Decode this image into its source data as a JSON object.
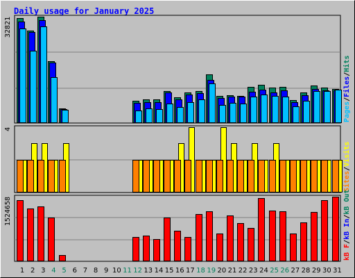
{
  "title": "Daily usage for January 2025",
  "colors": {
    "background": "#C0C0C0",
    "title": "#0000FF",
    "hits": "#00805C",
    "files": "#0000FF",
    "pages": "#00C0FF",
    "visits": "#FFFF00",
    "sites": "#FF8000",
    "kbin": "#0000FF",
    "kbout": "#00805C",
    "kbf": "#FF0000",
    "weekday_label": "#000000",
    "weekend_label": "#00805C"
  },
  "chart_data": [
    {
      "type": "bar",
      "title": "Daily usage for January 2025",
      "ymax_label": "32821",
      "ylim": [
        0,
        32821
      ],
      "legend": [
        {
          "text": "Pages",
          "color": "#00C0FF"
        },
        {
          "text": "/",
          "color": "#000000"
        },
        {
          "text": "Files",
          "color": "#0000FF"
        },
        {
          "text": "/",
          "color": "#000000"
        },
        {
          "text": "Hits",
          "color": "#00805C"
        }
      ],
      "categories": [
        "1",
        "2",
        "3",
        "4",
        "5",
        "6",
        "7",
        "8",
        "9",
        "10",
        "11",
        "12",
        "13",
        "14",
        "15",
        "16",
        "17",
        "18",
        "19",
        "20",
        "21",
        "22",
        "23",
        "24",
        "25",
        "26",
        "27",
        "28",
        "29",
        "30",
        "31"
      ],
      "series": [
        {
          "name": "Hits",
          "values": [
            32300,
            28600,
            32800,
            19100,
            4600,
            0,
            0,
            0,
            0,
            0,
            0,
            6800,
            7300,
            7300,
            9900,
            8000,
            9400,
            9900,
            15000,
            8300,
            8600,
            8400,
            11100,
            11800,
            11000,
            11100,
            7100,
            9400,
            11500,
            11000,
            10600
          ]
        },
        {
          "name": "Files",
          "values": [
            31300,
            28200,
            31800,
            18600,
            4300,
            0,
            0,
            0,
            0,
            0,
            0,
            6300,
            6500,
            6500,
            9500,
            7300,
            8900,
            9300,
            13400,
            7800,
            8200,
            8100,
            9700,
            10400,
            9400,
            10000,
            6500,
            8500,
            10600,
            10000,
            10000
          ]
        },
        {
          "name": "Pages",
          "values": [
            29200,
            22300,
            29800,
            14200,
            4100,
            0,
            0,
            0,
            0,
            0,
            0,
            3800,
            4500,
            4300,
            6000,
            4900,
            6500,
            7200,
            12200,
            5600,
            6300,
            6000,
            8100,
            8900,
            8400,
            8200,
            5100,
            6900,
            9800,
            9800,
            10300
          ]
        }
      ]
    },
    {
      "type": "bar",
      "ymax_label": "4",
      "ylim": [
        0,
        4
      ],
      "legend": [
        {
          "text": "Sites",
          "color": "#FF8000"
        },
        {
          "text": "/",
          "color": "#000000"
        },
        {
          "text": "Visits",
          "color": "#FFFF00"
        }
      ],
      "categories": [
        "1",
        "2",
        "3",
        "4",
        "5",
        "6",
        "7",
        "8",
        "9",
        "10",
        "11",
        "12",
        "13",
        "14",
        "15",
        "16",
        "17",
        "18",
        "19",
        "20",
        "21",
        "22",
        "23",
        "24",
        "25",
        "26",
        "27",
        "28",
        "29",
        "30",
        "31"
      ],
      "series": [
        {
          "name": "Visits",
          "values": [
            2,
            3,
            3,
            2,
            3,
            0,
            0,
            0,
            0,
            0,
            0,
            2,
            2,
            2,
            2,
            3,
            4,
            2,
            2,
            4,
            3,
            2,
            3,
            2,
            3,
            2,
            2,
            2,
            2,
            2,
            2
          ]
        },
        {
          "name": "Sites",
          "values": [
            2,
            2,
            2,
            2,
            2,
            0,
            0,
            0,
            0,
            0,
            0,
            2,
            2,
            2,
            2,
            2,
            2,
            2,
            2,
            2,
            2,
            2,
            2,
            2,
            2,
            2,
            2,
            2,
            2,
            2,
            2
          ]
        }
      ]
    },
    {
      "type": "bar",
      "ymax_label": "1524658",
      "ylim": [
        0,
        1524658
      ],
      "legend": [
        {
          "text": "kB F",
          "color": "#FF0000"
        },
        {
          "text": "/",
          "color": "#000000"
        },
        {
          "text": "kB In",
          "color": "#0000FF"
        },
        {
          "text": "/",
          "color": "#000000"
        },
        {
          "text": "kB Out",
          "color": "#00805C"
        }
      ],
      "categories": [
        "1",
        "2",
        "3",
        "4",
        "5",
        "6",
        "7",
        "8",
        "9",
        "10",
        "11",
        "12",
        "13",
        "14",
        "15",
        "16",
        "17",
        "18",
        "19",
        "20",
        "21",
        "22",
        "23",
        "24",
        "25",
        "26",
        "27",
        "28",
        "29",
        "30",
        "31"
      ],
      "series": [
        {
          "name": "kB F",
          "values": [
            1450000,
            1250000,
            1290000,
            1040000,
            150000,
            0,
            0,
            0,
            0,
            0,
            0,
            580000,
            610000,
            520000,
            1030000,
            720000,
            580000,
            1120000,
            1180000,
            650000,
            1080000,
            900000,
            780000,
            1490000,
            1200000,
            1180000,
            650000,
            920000,
            1160000,
            1450000,
            1520000
          ]
        }
      ]
    }
  ],
  "x_axis": {
    "labels": [
      "1",
      "2",
      "3",
      "4",
      "5",
      "6",
      "7",
      "8",
      "9",
      "10",
      "11",
      "12",
      "13",
      "14",
      "15",
      "16",
      "17",
      "18",
      "19",
      "20",
      "21",
      "22",
      "23",
      "24",
      "25",
      "26",
      "27",
      "28",
      "29",
      "30",
      "31"
    ],
    "weekend": [
      false,
      false,
      false,
      true,
      true,
      false,
      false,
      false,
      false,
      false,
      true,
      true,
      false,
      false,
      false,
      false,
      false,
      true,
      true,
      false,
      false,
      false,
      false,
      false,
      true,
      true,
      false,
      false,
      false,
      false,
      false
    ]
  }
}
